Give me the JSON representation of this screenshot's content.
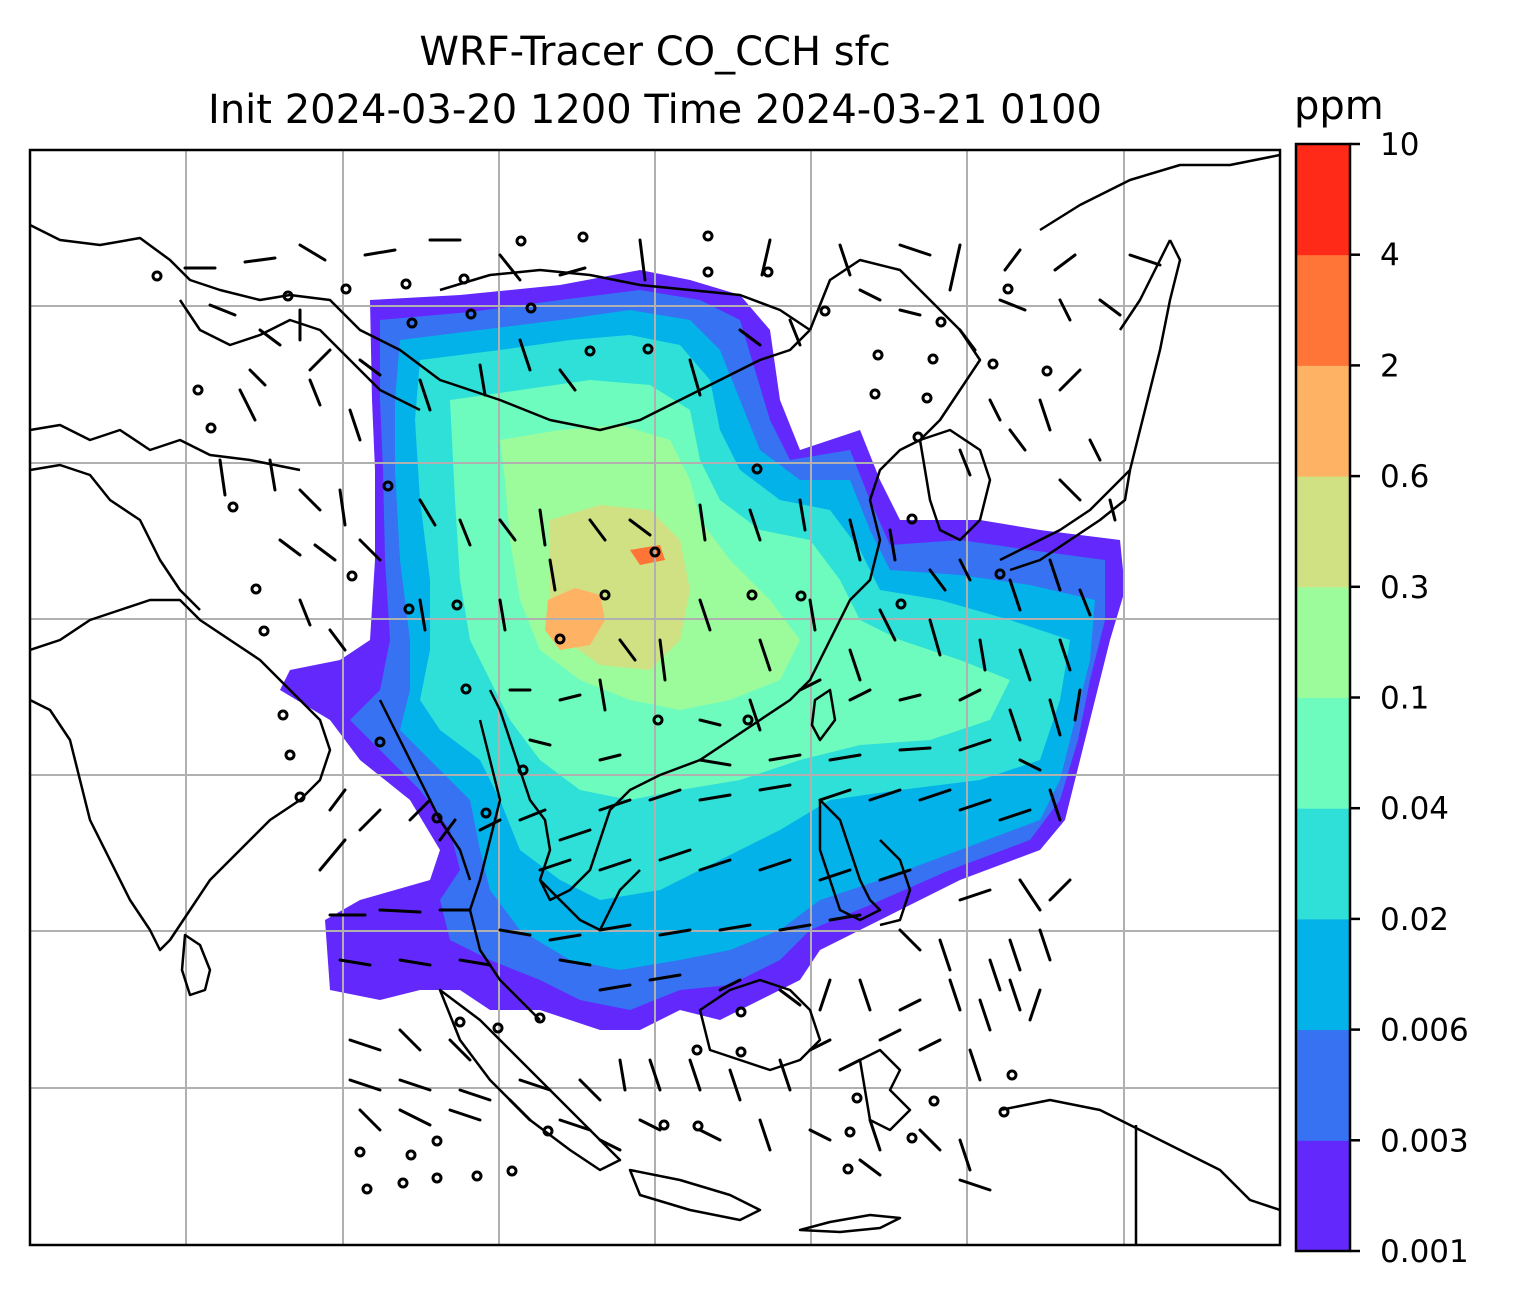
{
  "map": {
    "title_line1": "WRF-Tracer CO_CCH sfc",
    "title_line2": "Init 2024-03-20 1200 Time 2024-03-21 0100",
    "grid": true,
    "colorbar": {
      "units": "ppm",
      "ticks": [
        "0.001",
        "0.003",
        "0.006",
        "0.02",
        "0.04",
        "0.1",
        "0.3",
        "0.6",
        "2",
        "4",
        "10"
      ],
      "colors": [
        "#6228fc",
        "#3672f2",
        "#04b2ea",
        "#2ee0d8",
        "#6efcbe",
        "#9cfc9c",
        "#d0e183",
        "#feb264",
        "#ff7437",
        "#ff2b18"
      ]
    }
  }
}
